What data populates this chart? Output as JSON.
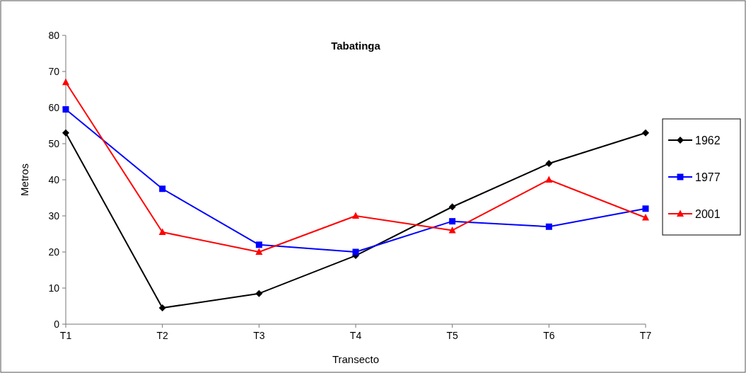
{
  "chart_data": {
    "type": "line",
    "title": "Tabatinga",
    "xlabel": "Transecto",
    "ylabel": "Metros",
    "categories": [
      "T1",
      "T2",
      "T3",
      "T4",
      "T5",
      "T6",
      "T7"
    ],
    "series": [
      {
        "name": "1962",
        "color": "#000000",
        "marker": "diamond",
        "values": [
          53,
          4.5,
          8.5,
          19,
          32.5,
          44.5,
          53
        ]
      },
      {
        "name": "1977",
        "color": "#0000ff",
        "marker": "square",
        "values": [
          59.5,
          37.5,
          22,
          20,
          28.5,
          27,
          32
        ]
      },
      {
        "name": "2001",
        "color": "#ff0000",
        "marker": "triangle",
        "values": [
          67,
          25.5,
          20,
          30,
          26,
          40,
          29.5
        ]
      }
    ],
    "ylim": [
      0,
      80
    ],
    "yticks": [
      0,
      10,
      20,
      30,
      40,
      50,
      60,
      70,
      80
    ],
    "grid": false,
    "legend": "right"
  }
}
